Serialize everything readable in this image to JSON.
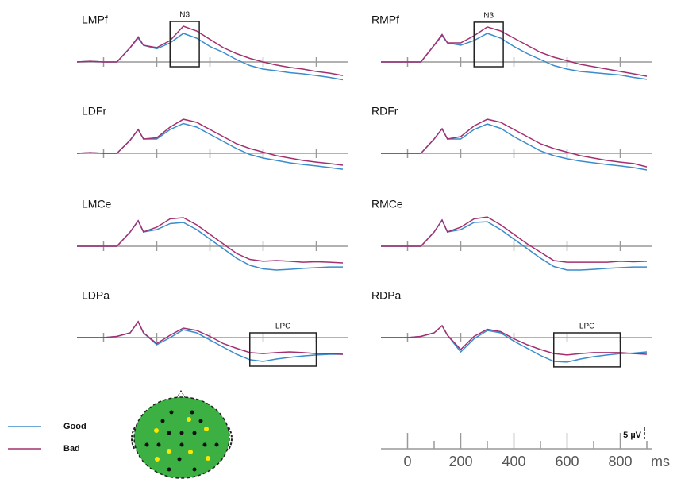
{
  "chart_data": [
    {
      "type": "line",
      "title": "LMPf",
      "x": [
        -100,
        -50,
        0,
        50,
        100,
        130,
        150,
        200,
        250,
        300,
        350,
        400,
        450,
        500,
        550,
        600,
        650,
        700,
        750,
        800,
        850,
        900
      ],
      "xlim": [
        -100,
        920
      ],
      "ylim": [
        -12,
        16
      ],
      "xticks": [
        0,
        200,
        400,
        600,
        800
      ],
      "series": [
        {
          "name": "Good",
          "color": "#3a8ccc",
          "values": [
            0,
            0.3,
            0,
            0,
            6,
            10,
            7,
            5.5,
            8,
            12,
            10,
            6.5,
            4,
            1,
            -1.5,
            -3,
            -3.7,
            -4.5,
            -5,
            -5.7,
            -6.5,
            -7.5
          ]
        },
        {
          "name": "Bad",
          "color": "#a3306f",
          "values": [
            0,
            0.3,
            0,
            0,
            6,
            10.5,
            7,
            6,
            9,
            15,
            13,
            9.5,
            6,
            3.5,
            1.5,
            0,
            -1.3,
            -2.3,
            -3,
            -4,
            -4.7,
            -5.7
          ]
        }
      ],
      "annotations": [
        {
          "label": "N3",
          "x": [
            250,
            360
          ]
        }
      ]
    },
    {
      "type": "line",
      "title": "RMPf",
      "x": [
        -100,
        -50,
        0,
        50,
        100,
        130,
        150,
        200,
        250,
        300,
        350,
        400,
        450,
        500,
        550,
        600,
        650,
        700,
        750,
        800,
        850,
        900
      ],
      "xlim": [
        -100,
        920
      ],
      "ylim": [
        -12,
        16
      ],
      "xticks": [
        0,
        200,
        400,
        600,
        800
      ],
      "series": [
        {
          "color": "#3a8ccc",
          "values": [
            0,
            0,
            0,
            0,
            7,
            11,
            8,
            7,
            9,
            12,
            10,
            6.5,
            3.5,
            1,
            -1.5,
            -3,
            -4,
            -4.5,
            -5,
            -5.5,
            -6.5,
            -7.3
          ]
        },
        {
          "color": "#a3306f",
          "values": [
            0,
            0,
            0,
            0,
            7,
            11.5,
            8,
            8,
            11,
            14.7,
            13,
            10,
            7,
            4,
            2,
            0.5,
            -1,
            -2,
            -3,
            -4,
            -5,
            -6
          ]
        }
      ],
      "annotations": [
        {
          "label": "N3",
          "x": [
            250,
            360
          ]
        }
      ]
    },
    {
      "type": "line",
      "title": "LDFr",
      "x": [
        -100,
        -50,
        0,
        50,
        100,
        130,
        150,
        200,
        250,
        300,
        350,
        400,
        450,
        500,
        550,
        600,
        650,
        700,
        750,
        800,
        850,
        900
      ],
      "xlim": [
        -100,
        920
      ],
      "ylim": [
        -12,
        16
      ],
      "xticks": [
        0,
        200,
        400,
        600,
        800
      ],
      "series": [
        {
          "color": "#3a8ccc",
          "values": [
            0,
            0.3,
            0,
            0,
            5.5,
            10,
            6,
            6,
            10,
            12.5,
            11,
            8,
            5,
            2,
            -0.5,
            -2,
            -3,
            -4,
            -4.7,
            -5.3,
            -6,
            -6.7
          ]
        },
        {
          "color": "#a3306f",
          "values": [
            0,
            0.3,
            0,
            0,
            5.5,
            10,
            6,
            6.5,
            11,
            14.3,
            13,
            10,
            7,
            4,
            2,
            0.5,
            -1,
            -2,
            -3,
            -3.7,
            -4.3,
            -5
          ]
        }
      ]
    },
    {
      "type": "line",
      "title": "RDFr",
      "x": [
        -100,
        -50,
        0,
        50,
        100,
        130,
        150,
        200,
        250,
        300,
        350,
        400,
        450,
        500,
        550,
        600,
        650,
        700,
        750,
        800,
        850,
        900
      ],
      "xlim": [
        -100,
        920
      ],
      "ylim": [
        -12,
        16
      ],
      "xticks": [
        0,
        200,
        400,
        600,
        800
      ],
      "series": [
        {
          "color": "#3a8ccc",
          "values": [
            0,
            0,
            0,
            0,
            6,
            10.3,
            6,
            6,
            10,
            12.3,
            10.5,
            7,
            4,
            1,
            -1,
            -2.3,
            -3.3,
            -4,
            -4.7,
            -5.3,
            -6,
            -7
          ]
        },
        {
          "color": "#a3306f",
          "values": [
            0,
            0,
            0,
            0,
            6,
            10.3,
            6,
            7,
            11.5,
            14.3,
            13,
            10,
            7,
            4,
            2,
            0.5,
            -1,
            -2,
            -3,
            -3.7,
            -4.3,
            -5.7
          ]
        }
      ]
    },
    {
      "type": "line",
      "title": "LMCe",
      "x": [
        -100,
        -50,
        0,
        50,
        100,
        130,
        150,
        200,
        250,
        300,
        350,
        400,
        450,
        500,
        550,
        600,
        650,
        700,
        750,
        800,
        850,
        900
      ],
      "xlim": [
        -100,
        920
      ],
      "ylim": [
        -12,
        16
      ],
      "xticks": [
        0,
        200,
        400,
        600,
        800
      ],
      "series": [
        {
          "color": "#3a8ccc",
          "values": [
            0,
            0,
            0,
            0,
            6,
            10.7,
            6,
            7,
            9.5,
            10,
            7,
            3,
            -1,
            -5,
            -8,
            -9.5,
            -10,
            -9.7,
            -9.3,
            -9,
            -8.7,
            -8.7
          ]
        },
        {
          "color": "#a3306f",
          "values": [
            0,
            0,
            0,
            0,
            6,
            10.7,
            6,
            8,
            11.5,
            12,
            9,
            5,
            1,
            -3,
            -5.5,
            -6.3,
            -6,
            -6.3,
            -6.7,
            -6.5,
            -6.7,
            -7
          ]
        }
      ]
    },
    {
      "type": "line",
      "title": "RMCe",
      "x": [
        -100,
        -50,
        0,
        50,
        100,
        130,
        150,
        200,
        250,
        300,
        350,
        400,
        450,
        500,
        550,
        600,
        650,
        700,
        750,
        800,
        850,
        900
      ],
      "xlim": [
        -100,
        920
      ],
      "ylim": [
        -12,
        16
      ],
      "xticks": [
        0,
        200,
        400,
        600,
        800
      ],
      "series": [
        {
          "color": "#3a8ccc",
          "values": [
            0,
            0,
            0,
            0,
            6,
            11,
            6,
            7,
            10,
            10.3,
            7,
            3,
            -1,
            -5,
            -8.5,
            -10,
            -10,
            -9.7,
            -9.3,
            -9,
            -8.7,
            -8.7
          ]
        },
        {
          "color": "#a3306f",
          "values": [
            0,
            0,
            0,
            0,
            6,
            11,
            6,
            8,
            11.5,
            12.3,
            9,
            5,
            1,
            -2.5,
            -6,
            -6.7,
            -6.7,
            -6.7,
            -6.7,
            -6.3,
            -6.5,
            -6.3
          ]
        }
      ]
    },
    {
      "type": "line",
      "title": "LDPa",
      "x": [
        -100,
        -50,
        0,
        50,
        100,
        130,
        150,
        200,
        250,
        300,
        350,
        400,
        450,
        500,
        550,
        600,
        650,
        700,
        750,
        800,
        850,
        900
      ],
      "xlim": [
        -100,
        920
      ],
      "ylim": [
        -12,
        16
      ],
      "xticks": [
        0,
        200,
        400,
        600,
        800
      ],
      "series": [
        {
          "color": "#3a8ccc",
          "values": [
            0,
            0,
            0,
            0.5,
            2,
            6.7,
            2,
            -3,
            0,
            3.3,
            2,
            -1,
            -4,
            -7,
            -9.3,
            -10,
            -9,
            -8.3,
            -7.7,
            -7.3,
            -7,
            -7
          ]
        },
        {
          "color": "#a3306f",
          "values": [
            0,
            0,
            0,
            0.5,
            2,
            6.7,
            2,
            -2.5,
            1,
            4,
            3,
            0.5,
            -2.5,
            -4.5,
            -6.3,
            -6.7,
            -6.3,
            -6,
            -6.3,
            -6.7,
            -6.7,
            -7
          ]
        }
      ],
      "annotations": [
        {
          "label": "LPC",
          "x": [
            550,
            800
          ]
        }
      ]
    },
    {
      "type": "line",
      "title": "RDPa",
      "x": [
        -100,
        -50,
        0,
        50,
        100,
        130,
        150,
        200,
        250,
        300,
        350,
        400,
        450,
        500,
        550,
        600,
        650,
        700,
        750,
        800,
        850,
        900
      ],
      "xlim": [
        -100,
        920
      ],
      "ylim": [
        -12,
        16
      ],
      "xticks": [
        0,
        200,
        400,
        600,
        800
      ],
      "series": [
        {
          "color": "#3a8ccc",
          "values": [
            0,
            0,
            0,
            0.5,
            2,
            5,
            1,
            -6,
            -0.5,
            3,
            2,
            -1.5,
            -4.5,
            -7.5,
            -10,
            -10.3,
            -9,
            -8,
            -7.3,
            -6.7,
            -6.5,
            -6
          ]
        },
        {
          "color": "#a3306f",
          "values": [
            0,
            0,
            0,
            0.5,
            2,
            5,
            1,
            -5,
            0.5,
            3.5,
            2.5,
            -0.5,
            -3,
            -5,
            -6.7,
            -7.3,
            -6.7,
            -6.3,
            -6.3,
            -6.3,
            -6.7,
            -7
          ]
        }
      ],
      "annotations": [
        {
          "label": "LPC",
          "x": [
            550,
            800
          ]
        }
      ]
    }
  ],
  "time_scale": {
    "xticks": [
      0,
      200,
      400,
      600,
      800
    ],
    "minor_ticks": [
      100,
      300,
      500,
      700,
      900
    ],
    "unit": "ms"
  },
  "scale_bar": {
    "value": 5,
    "label": "5 µV"
  }
}
